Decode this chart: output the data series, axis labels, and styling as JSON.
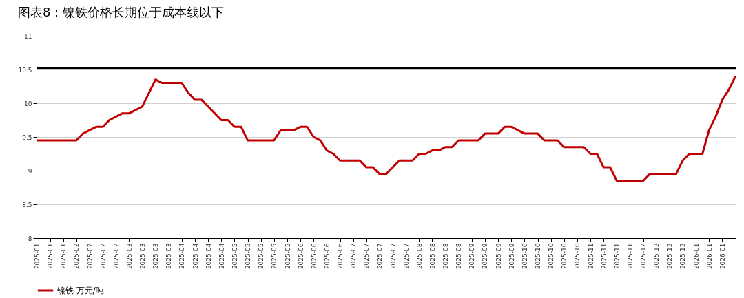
{
  "chart_data": {
    "type": "line",
    "title": "图表8：镍铁价格长期位于成本线以下",
    "categories": [
      "2025-01",
      null,
      "2025-01",
      null,
      "2025-01",
      null,
      "2025-02",
      null,
      "2025-02",
      null,
      "2025-02",
      null,
      "2025-02",
      null,
      "2025-03",
      null,
      "2025-03",
      null,
      "2025-03",
      null,
      "2025-03",
      null,
      "2025-04",
      null,
      "2025-04",
      null,
      "2025-04",
      null,
      "2025-04",
      null,
      "2025-05",
      null,
      "2025-05",
      null,
      "2025-05",
      null,
      "2025-05",
      null,
      "2025-05",
      null,
      "2025-06",
      null,
      "2025-06",
      null,
      "2025-06",
      null,
      "2025-06",
      null,
      "2025-07",
      null,
      "2025-07",
      null,
      "2025-07",
      null,
      "2025-07",
      null,
      "2025-07",
      null,
      "2025-08",
      null,
      "2025-08",
      null,
      "2025-08",
      null,
      "2025-08",
      null,
      "2025-09",
      null,
      "2025-09",
      null,
      "2025-09",
      null,
      "2025-09",
      null,
      "2025-10",
      null,
      "2025-10",
      null,
      "2025-10",
      null,
      "2025-10",
      null,
      "2025-10",
      null,
      "2025-11",
      null,
      "2025-11",
      null,
      "2025-11",
      null,
      "2025-11",
      null,
      "2025-12",
      null,
      "2025-12",
      null,
      "2025-12",
      null,
      "2025-12",
      null,
      "2026-01",
      null,
      "2026-01",
      null,
      "2026-01",
      null,
      null
    ],
    "series": [
      {
        "name": "镍铁  万元/吨",
        "color": "#c00000",
        "values": [
          9.45,
          9.45,
          9.45,
          9.45,
          9.45,
          9.45,
          9.45,
          9.55,
          9.6,
          9.65,
          9.65,
          9.75,
          9.8,
          9.85,
          9.85,
          9.9,
          9.95,
          10.15,
          10.35,
          10.3,
          10.3,
          10.3,
          10.3,
          10.15,
          10.05,
          10.05,
          9.95,
          9.85,
          9.75,
          9.75,
          9.65,
          9.65,
          9.45,
          9.45,
          9.45,
          9.45,
          9.45,
          9.6,
          9.6,
          9.6,
          9.65,
          9.65,
          9.5,
          9.45,
          9.3,
          9.25,
          9.15,
          9.15,
          9.15,
          9.15,
          9.05,
          9.05,
          8.95,
          8.95,
          9.05,
          9.15,
          9.15,
          9.15,
          9.25,
          9.25,
          9.3,
          9.3,
          9.35,
          9.35,
          9.45,
          9.45,
          9.45,
          9.45,
          9.55,
          9.55,
          9.55,
          9.65,
          9.65,
          9.6,
          9.55,
          9.55,
          9.55,
          9.45,
          9.45,
          9.45,
          9.35,
          9.35,
          9.35,
          9.35,
          9.25,
          9.25,
          9.05,
          9.05,
          8.85,
          8.85,
          8.85,
          8.85,
          8.85,
          8.95,
          8.95,
          8.95,
          8.95,
          8.95,
          9.15,
          9.25,
          9.25,
          9.25,
          9.6,
          9.8,
          10.05,
          10.2,
          10.4
        ]
      }
    ],
    "ylim": [
      8,
      11
    ],
    "yticks": [
      8,
      8.5,
      9,
      9.5,
      10,
      10.5,
      11
    ],
    "grid": "y",
    "legend": "bottom",
    "ref_lines": [
      {
        "axis": "y",
        "value": 10.52,
        "color": "#000000"
      }
    ]
  }
}
